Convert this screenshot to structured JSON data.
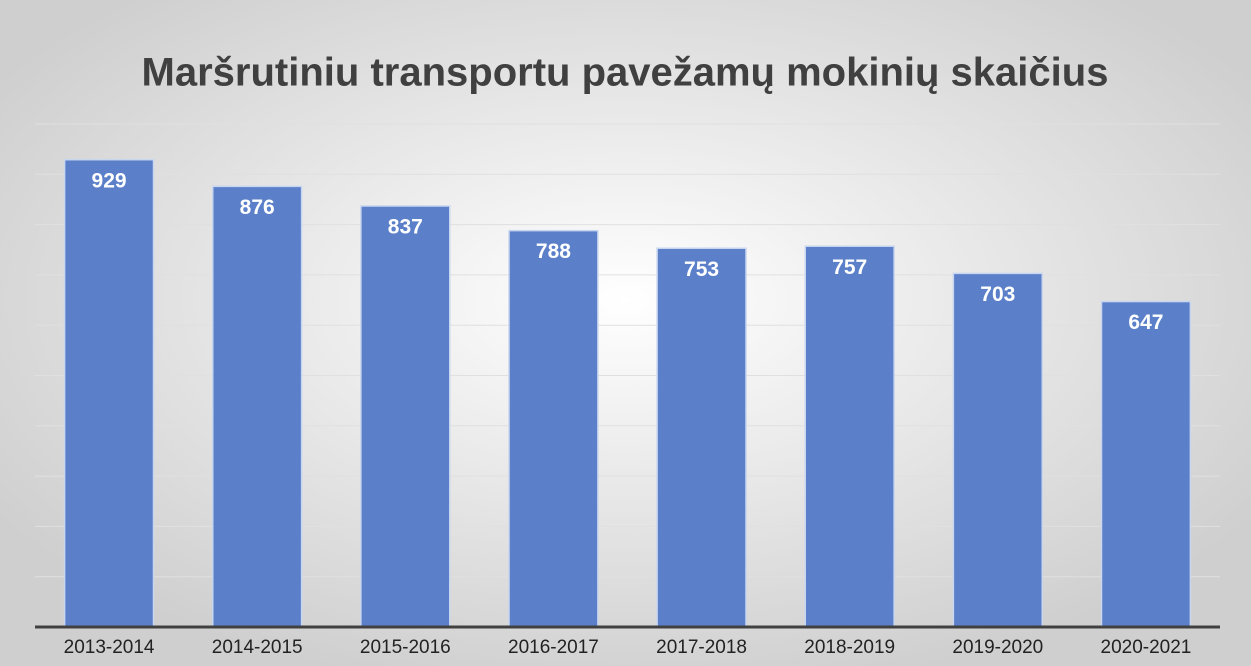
{
  "chart_data": {
    "type": "bar",
    "title": "Maršrutiniu transportu pavežamų mokinių skaičius",
    "categories": [
      "2013-2014",
      "2014-2015",
      "2015-2016",
      "2016-2017",
      "2017-2018",
      "2018-2019",
      "2019-2020",
      "2020-2021"
    ],
    "values": [
      929,
      876,
      837,
      788,
      753,
      757,
      703,
      647
    ],
    "color": "#5b80c9",
    "ylim": [
      0,
      1000
    ],
    "yticks": [
      0,
      100,
      200,
      300,
      400,
      500,
      600,
      700,
      800,
      900,
      1000
    ],
    "grid": true
  }
}
